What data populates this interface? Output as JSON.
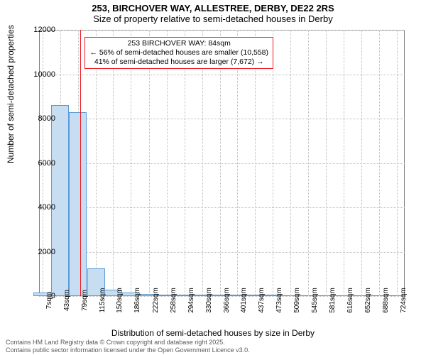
{
  "title_line1": "253, BIRCHOVER WAY, ALLESTREE, DERBY, DE22 2RS",
  "title_line2": "Size of property relative to semi-detached houses in Derby",
  "ylabel": "Number of semi-detached properties",
  "xlabel": "Distribution of semi-detached houses by size in Derby",
  "footer_line1": "Contains HM Land Registry data © Crown copyright and database right 2025.",
  "footer_line2": "Contains public sector information licensed under the Open Government Licence v3.0.",
  "annotation": {
    "line1": "253 BIRCHOVER WAY: 84sqm",
    "line2": "← 56% of semi-detached houses are smaller (10,558)",
    "line3": "41% of semi-detached houses are larger (7,672) →"
  },
  "chart": {
    "type": "histogram",
    "ylim": [
      0,
      12000
    ],
    "ytick_step": 2000,
    "background_color": "#ffffff",
    "grid_color": "#bbbbbb",
    "plot_border_color": "#808080",
    "bar_fill": "#c7ddf2",
    "bar_stroke": "#5b9bd5",
    "reference_line_color": "#ec1c24",
    "reference_x_value": 84,
    "x_range": [
      0,
      740
    ],
    "bar_bin_width": 36,
    "x_ticks": [
      7,
      43,
      79,
      115,
      150,
      186,
      222,
      258,
      294,
      330,
      366,
      401,
      437,
      473,
      509,
      545,
      581,
      616,
      652,
      688,
      724
    ],
    "x_tick_suffix": "sqm",
    "bars_x": [
      7,
      43,
      79,
      115,
      150,
      186,
      222,
      258,
      294,
      330,
      366,
      401,
      437,
      473
    ],
    "bars_y": [
      150,
      8600,
      8300,
      1250,
      300,
      170,
      100,
      70,
      50,
      30,
      25,
      15,
      10,
      5
    ]
  }
}
